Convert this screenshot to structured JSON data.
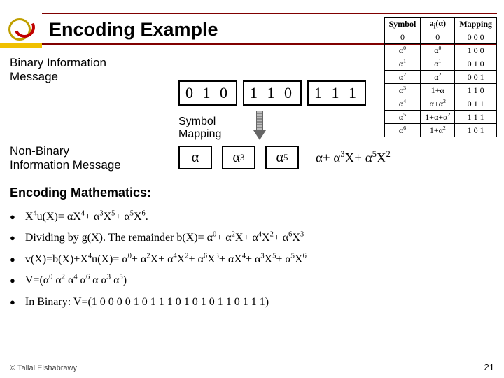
{
  "title": "Encoding Example",
  "binary_label_l1": "Binary Information",
  "binary_label_l2": "Message",
  "bits": {
    "g1": "0 1 0",
    "g2": "1 1 0",
    "g3": "1 1 1"
  },
  "symmap_l1": "Symbol",
  "symmap_l2": "Mapping",
  "nonbin_l1": "Non-Binary",
  "nonbin_l2": "Information Message",
  "syms": {
    "s1": "α",
    "s2_base": "α",
    "s2_sup": "3",
    "s3_base": "α",
    "s3_sup": "5"
  },
  "poly": "α+ α<sup>3</sup>X+ α<sup>5</sup>X<sup>2</sup>",
  "table": {
    "head": [
      "Symbol",
      "a<sub>i</sub>(α)",
      "Mapping"
    ],
    "rows": [
      [
        "0",
        "0",
        "0 0 0"
      ],
      [
        "α<sup>0</sup>",
        "α<sup>0</sup>",
        "1 0 0"
      ],
      [
        "α<sup>1</sup>",
        "α<sup>1</sup>",
        "0 1 0"
      ],
      [
        "α<sup>2</sup>",
        "α<sup>2</sup>",
        "0 0 1"
      ],
      [
        "α<sup>3</sup>",
        "1+α",
        "1 1 0"
      ],
      [
        "α<sup>4</sup>",
        "α+α<sup>2</sup>",
        "0 1 1"
      ],
      [
        "α<sup>5</sup>",
        "1+α+α<sup>2</sup>",
        "1 1 1"
      ],
      [
        "α<sup>6</sup>",
        "1+α<sup>2</sup>",
        "1 0 1"
      ]
    ]
  },
  "enc_math_title": "Encoding Mathematics:",
  "bul": {
    "b1": "X<sup>4</sup>u(X)= αX<sup>4</sup>+ α<sup>3</sup>X<sup>5</sup>+ α<sup>5</sup>X<sup>6</sup>.",
    "b2": "Dividing by g(X). The remainder b(X)= α<sup>0</sup>+ α<sup>2</sup>X+ α<sup>4</sup>X<sup>2</sup>+ α<sup>6</sup>X<sup>3</sup>",
    "b3": "v(X)=b(X)+X<sup>4</sup>u(X)= α<sup>0</sup>+ α<sup>2</sup>X+ α<sup>4</sup>X<sup>2</sup>+ α<sup>6</sup>X<sup>3</sup>+ αX<sup>4</sup>+ α<sup>3</sup>X<sup>5</sup>+ α<sup>5</sup>X<sup>6</sup>",
    "b4": "V=(α<sup>0</sup> α<sup>2</sup> α<sup>4</sup> α<sup>6</sup> α α<sup>3</sup> α<sup>5</sup>)",
    "b5": "In Binary: V=(1 0 0  0 0 1  0 1 1  1 0 1  0 1 0  1 1 0  1 1 1)"
  },
  "footer": "© Tallal Elshabrawy",
  "pagenum": "21"
}
